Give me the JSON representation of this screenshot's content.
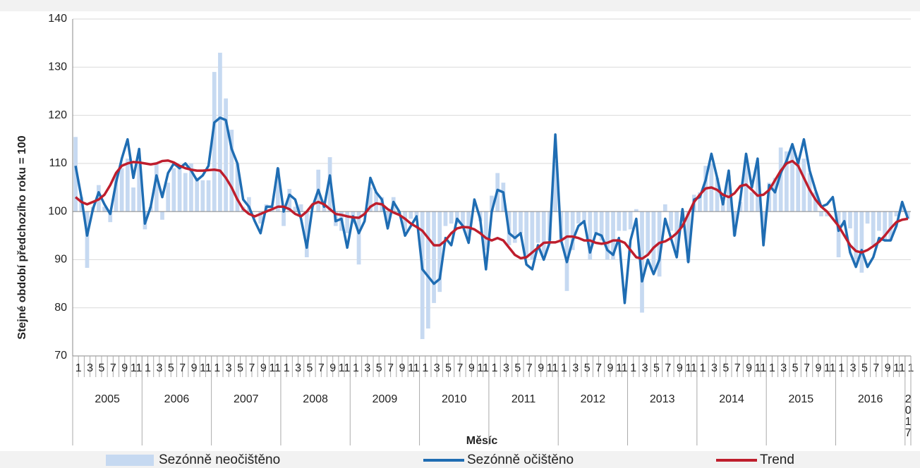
{
  "chart_data": {
    "type": "combo",
    "y_label": "Stejné období předchozího roku = 100",
    "x_label": "Měsíc",
    "ylim": [
      70,
      140
    ],
    "yticks": [
      70,
      80,
      90,
      100,
      110,
      120,
      130,
      140
    ],
    "grid": true,
    "x_axis_crosses": 100,
    "legend": "bottom",
    "categories": [
      "1",
      null,
      "3",
      null,
      "5",
      null,
      "7",
      null,
      "9",
      null,
      "11",
      null,
      "1",
      null,
      "3",
      null,
      "5",
      null,
      "7",
      null,
      "9",
      null,
      "11",
      null,
      "1",
      null,
      "3",
      null,
      "5",
      null,
      "7",
      null,
      "9",
      null,
      "11",
      null,
      "1",
      null,
      "3",
      null,
      "5",
      null,
      "7",
      null,
      "9",
      null,
      "11",
      null,
      "1",
      null,
      "3",
      null,
      "5",
      null,
      "7",
      null,
      "9",
      null,
      "11",
      null,
      "1",
      null,
      "3",
      null,
      "5",
      null,
      "7",
      null,
      "9",
      null,
      "11",
      null,
      "1",
      null,
      "3",
      null,
      "5",
      null,
      "7",
      null,
      "9",
      null,
      "11",
      null,
      "1",
      null,
      "3",
      null,
      "5",
      null,
      "7",
      null,
      "9",
      null,
      "11",
      null,
      "1",
      null,
      "3",
      null,
      "5",
      null,
      "7",
      null,
      "9",
      null,
      "11",
      null,
      "1",
      null,
      "3",
      null,
      "5",
      null,
      "7",
      null,
      "9",
      null,
      "11",
      null,
      "1",
      null,
      "3",
      null,
      "5",
      null,
      "7",
      null,
      "9",
      null,
      "11",
      null,
      "1",
      null,
      "3",
      null,
      "5",
      null,
      "7",
      null,
      "9",
      null,
      "11",
      null,
      "1"
    ],
    "years": [
      "2005",
      "2006",
      "2007",
      "2008",
      "2009",
      "2010",
      "2011",
      "2012",
      "2013",
      "2014",
      "2015",
      "2016",
      "2017"
    ],
    "series": [
      {
        "name": "Sezónně neočištěno",
        "type": "bar",
        "color": "#c6d9f1",
        "values": [
          115.5,
          103,
          88.3,
          101,
          105.5,
          101,
          97.8,
          107.5,
          109,
          111,
          105,
          110,
          96.3,
          101,
          110,
          98.3,
          106,
          109,
          109,
          108,
          110,
          107,
          106.5,
          106.5,
          129,
          133,
          123.5,
          117,
          110,
          101,
          103,
          100,
          97.5,
          101.5,
          100.5,
          109,
          97,
          104.7,
          101,
          101.5,
          90.5,
          100,
          108.7,
          102,
          111.3,
          97,
          96,
          95.5,
          97.5,
          89,
          99.5,
          105,
          104,
          103,
          97,
          103,
          99.5,
          96,
          98.5,
          99,
          73.5,
          75.7,
          81,
          83.3,
          97,
          97.5,
          97.5,
          96.5,
          94,
          100,
          98,
          92,
          103.3,
          108,
          106,
          93,
          93.5,
          95.5,
          91,
          90,
          93.5,
          91,
          94,
          110.5,
          94,
          83.5,
          92,
          97.5,
          98,
          90,
          95.5,
          94,
          90,
          90,
          96,
          96,
          96.3,
          100.5,
          79,
          91,
          88,
          86.5,
          101.5,
          96,
          91.5,
          98,
          89.5,
          103.5,
          104,
          109.5,
          110,
          107,
          102,
          107.5,
          95,
          102,
          110,
          104,
          109.5,
          96,
          106,
          107,
          113.3,
          112.5,
          113.5,
          111,
          111,
          108,
          104,
          99,
          99,
          100,
          90.5,
          97,
          96.5,
          89,
          87.3,
          97.5,
          93,
          96,
          94,
          94,
          99,
          101,
          98.5
        ]
      },
      {
        "name": "Sezónně očištěno",
        "type": "line",
        "color": "#1f6db3",
        "values": [
          109.5,
          103,
          95,
          100.5,
          104,
          101.5,
          99.5,
          106,
          111,
          115,
          107,
          113,
          97.5,
          101,
          107.5,
          103,
          108,
          110,
          109,
          110,
          108.5,
          106.5,
          107.5,
          109.5,
          118.5,
          119.5,
          119,
          113,
          110,
          102.5,
          101,
          98,
          95.5,
          101,
          101,
          109,
          100,
          103.5,
          102.5,
          98.5,
          92.5,
          101,
          104.5,
          101,
          107.5,
          98,
          98.5,
          92.5,
          99,
          95.5,
          98,
          107,
          104,
          102.5,
          96.5,
          102,
          100,
          95,
          97,
          99,
          88,
          86.5,
          85,
          86,
          94.5,
          93,
          98.5,
          97,
          93.5,
          102.5,
          98.5,
          88,
          100,
          104.5,
          104,
          95.5,
          94.5,
          95.5,
          89,
          88,
          93,
          90,
          93.5,
          116,
          94,
          89.5,
          94,
          97,
          98,
          91.5,
          95.5,
          95,
          92,
          91,
          94.5,
          81,
          94,
          98.5,
          85.5,
          90,
          87,
          90,
          98.5,
          94.5,
          90.5,
          100.5,
          89.5,
          102.5,
          103,
          106.5,
          112,
          107,
          101.5,
          108.5,
          95,
          102.5,
          112,
          105,
          111,
          93,
          105.5,
          104,
          108,
          110.5,
          114,
          110,
          115,
          108.5,
          104.5,
          101,
          101.5,
          103,
          96,
          98,
          91.5,
          88.5,
          92,
          88.5,
          90.5,
          94.5,
          94,
          94,
          97,
          102,
          98.5
        ]
      },
      {
        "name": "Trend",
        "type": "line",
        "color": "#be1e2d",
        "values": [
          103,
          102,
          101.5,
          102,
          102.5,
          103.5,
          105.5,
          108,
          109.5,
          110,
          110.3,
          110.2,
          110,
          109.8,
          110,
          110.5,
          110.6,
          110.2,
          109.5,
          109,
          108.7,
          108.5,
          108.5,
          108.6,
          108.7,
          108.5,
          107,
          105,
          102.5,
          100.5,
          99.5,
          99,
          99.5,
          100,
          100.5,
          101,
          101,
          100.5,
          99.5,
          99,
          100,
          101.5,
          102,
          101.5,
          100.5,
          99.5,
          99.3,
          99,
          98.8,
          98.7,
          99.5,
          101,
          101.7,
          101.5,
          100.5,
          99.8,
          99.3,
          98.5,
          97.5,
          96.8,
          96,
          94.5,
          93,
          93,
          94,
          95.5,
          96.5,
          96.8,
          96.7,
          96.3,
          95.5,
          94.5,
          94,
          94.5,
          94,
          92.5,
          91,
          90.3,
          90.5,
          91.5,
          92.5,
          93.5,
          93.6,
          93.6,
          94,
          94.8,
          94.8,
          94.5,
          94,
          94,
          93.5,
          93.3,
          93.5,
          94,
          94,
          93.5,
          92,
          90.5,
          90.2,
          91,
          92.5,
          93.5,
          93.8,
          94.5,
          95.5,
          97,
          99.5,
          102,
          103.5,
          104.8,
          105,
          104.5,
          103.5,
          103,
          103.8,
          105.3,
          105.6,
          104.5,
          103.3,
          103.5,
          104.5,
          106.5,
          108.5,
          110,
          110.5,
          109.5,
          107,
          104.5,
          102.5,
          101,
          100,
          98.5,
          97,
          95,
          93,
          91.8,
          91.5,
          92,
          92.8,
          93.7,
          95,
          96.5,
          97.8,
          98.3,
          98.5
        ]
      }
    ]
  }
}
